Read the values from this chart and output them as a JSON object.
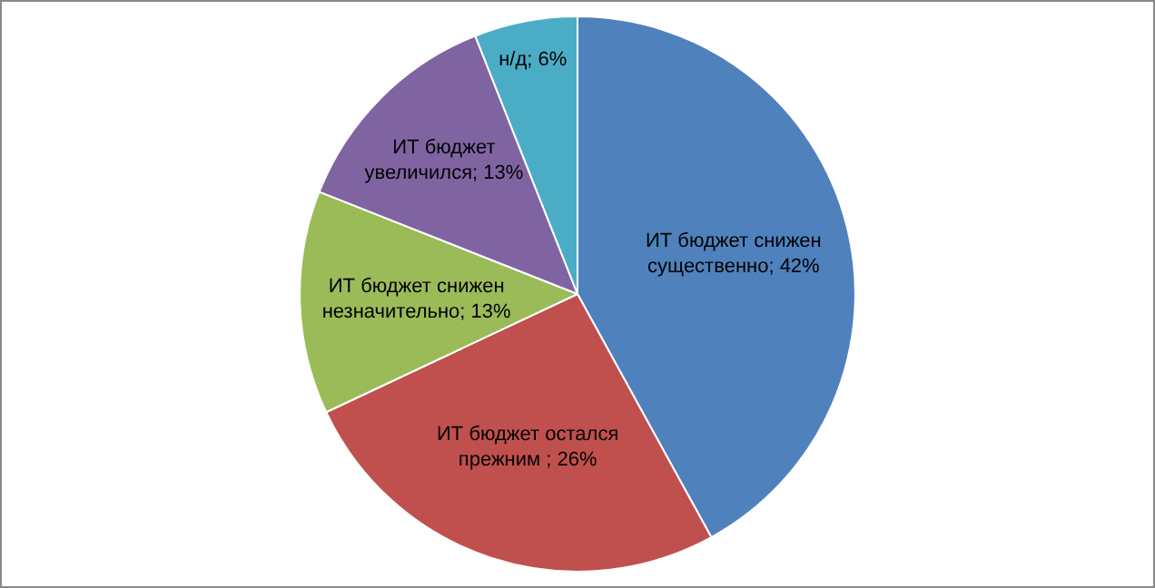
{
  "chart_data": {
    "type": "pie",
    "categories": [
      "ИТ бюджет снижен существенно",
      "ИТ бюджет остался прежним ",
      "ИТ бюджет снижен незначительно",
      "ИТ бюджет увеличился",
      "н/д"
    ],
    "values": [
      42,
      26,
      13,
      13,
      6
    ],
    "value_labels": [
      "42%",
      "26%",
      "13%",
      "13%",
      "6%"
    ],
    "colors": [
      "#4f81bd",
      "#c0504d",
      "#9bbb59",
      "#8064a2",
      "#4bacc6"
    ],
    "legend": false
  }
}
